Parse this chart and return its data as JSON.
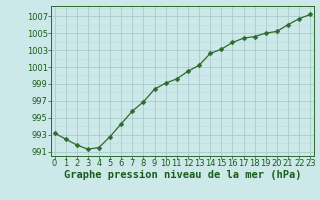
{
  "x": [
    0,
    1,
    2,
    3,
    4,
    5,
    6,
    7,
    8,
    9,
    10,
    11,
    12,
    13,
    14,
    15,
    16,
    17,
    18,
    19,
    20,
    21,
    22,
    23
  ],
  "y": [
    993.2,
    992.5,
    991.8,
    991.3,
    991.5,
    992.8,
    994.3,
    995.8,
    996.9,
    998.4,
    999.1,
    999.6,
    1000.5,
    1001.2,
    1002.6,
    1003.1,
    1003.9,
    1004.4,
    1004.6,
    1005.0,
    1005.2,
    1006.0,
    1006.7,
    1007.2
  ],
  "line_color": "#2d6a2d",
  "marker": "D",
  "marker_size": 2.5,
  "bg_color": "#cce8e8",
  "grid_major_color": "#aacccc",
  "grid_minor_color": "#bbdddd",
  "xlabel": "Graphe pression niveau de la mer (hPa)",
  "xlabel_color": "#1a5c1a",
  "xlabel_fontsize": 7.5,
  "tick_color": "#1a5c1a",
  "tick_fontsize": 6.0,
  "ylim": [
    990.5,
    1008.2
  ],
  "yticks": [
    991,
    993,
    995,
    997,
    999,
    1001,
    1003,
    1005,
    1007
  ],
  "xticks": [
    0,
    1,
    2,
    3,
    4,
    5,
    6,
    7,
    8,
    9,
    10,
    11,
    12,
    13,
    14,
    15,
    16,
    17,
    18,
    19,
    20,
    21,
    22,
    23
  ],
  "xlim": [
    -0.3,
    23.3
  ]
}
